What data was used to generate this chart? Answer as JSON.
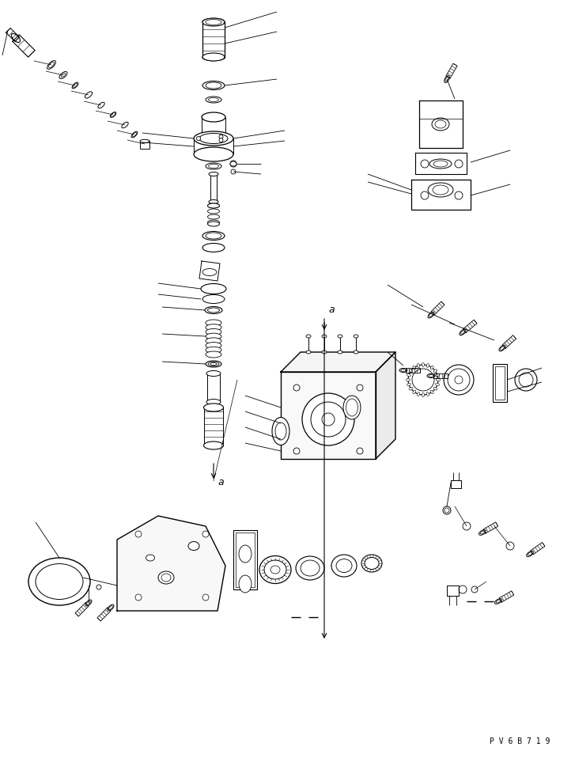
{
  "background_color": "#ffffff",
  "line_color": "#000000",
  "text_color": "#000000",
  "watermark_text": "P V 6 B 7 1 9",
  "figsize": [
    7.27,
    9.58
  ],
  "dpi": 100
}
